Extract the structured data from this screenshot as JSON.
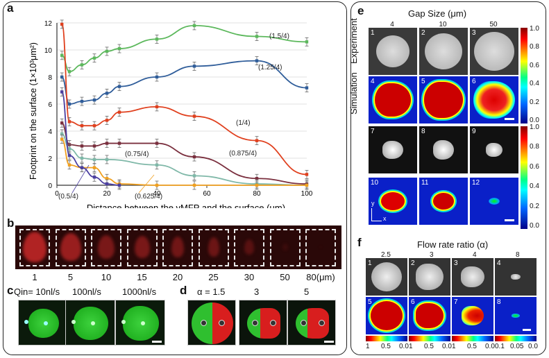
{
  "panel_labels": {
    "a": "a",
    "b": "b",
    "c": "c",
    "d": "d",
    "e": "e",
    "f": "f"
  },
  "chart_data": {
    "type": "line",
    "xlabel": "Distance between the vMFP and the surface (μm)",
    "ylabel": "Footprint on the surface (1×10³μm²)",
    "xlim": [
      0,
      100
    ],
    "ylim": [
      0,
      12
    ],
    "xticks": [
      "0",
      "20",
      "40",
      "60",
      "80",
      "100"
    ],
    "yticks": [
      "0",
      "2",
      "4",
      "6",
      "8",
      "10",
      "12"
    ],
    "series": [
      {
        "name": "(1.5/4)",
        "color": "#5cb85c",
        "x": [
          2,
          5,
          10,
          15,
          20,
          25,
          40,
          55,
          80,
          100
        ],
        "y": [
          9.6,
          8.4,
          8.9,
          9.4,
          9.9,
          10.1,
          10.8,
          11.8,
          11.0,
          10.6
        ]
      },
      {
        "name": "(1.25/4)",
        "color": "#2f5d9a",
        "x": [
          2,
          5,
          10,
          15,
          20,
          25,
          40,
          55,
          80,
          100
        ],
        "y": [
          8.0,
          6.0,
          6.2,
          6.3,
          6.8,
          7.3,
          8.0,
          8.8,
          9.2,
          7.2
        ]
      },
      {
        "name": "(1/4)",
        "color": "#e0401e",
        "x": [
          2,
          5,
          10,
          15,
          20,
          25,
          40,
          55,
          80,
          100
        ],
        "y": [
          11.9,
          4.7,
          4.4,
          4.4,
          4.8,
          5.4,
          5.8,
          5.1,
          3.3,
          0.8
        ]
      },
      {
        "name": "(0.875/4)",
        "color": "#7a2f3e",
        "x": [
          2,
          5,
          10,
          15,
          20,
          25,
          40,
          55,
          80,
          100
        ],
        "y": [
          4.6,
          3.0,
          2.9,
          2.9,
          3.1,
          3.1,
          3.1,
          2.1,
          0.5,
          0.1
        ]
      },
      {
        "name": "(0.75/4)",
        "color": "#7fb8a8",
        "x": [
          2,
          5,
          10,
          15,
          20,
          25,
          40,
          55,
          80,
          100
        ],
        "y": [
          3.8,
          2.7,
          2.0,
          1.9,
          1.9,
          null,
          1.5,
          0.7,
          0.1,
          0.0
        ]
      },
      {
        "name": "(0.625/4)",
        "color": "#f0a020",
        "x": [
          2,
          5,
          10,
          15,
          20,
          25,
          40,
          55,
          80,
          100
        ],
        "y": [
          3.4,
          1.5,
          1.3,
          1.3,
          0.5,
          0.1,
          0.0,
          0.0,
          0.0,
          0.0
        ]
      },
      {
        "name": "(0.5/4)",
        "color": "#4b3fa0",
        "x": [
          2,
          5,
          10,
          15,
          20,
          25
        ],
        "y": [
          6.9,
          2.2,
          1.3,
          0.6,
          0.1,
          0.0
        ]
      }
    ]
  },
  "panel_b": {
    "labels": [
      "1",
      "5",
      "10",
      "15",
      "20",
      "25",
      "30",
      "50",
      "80(μm)"
    ]
  },
  "panel_c": {
    "labels": [
      "Qin= 10nl/s",
      "100nl/s",
      "1000nl/s"
    ]
  },
  "panel_d": {
    "labels": [
      "α = 1.5",
      "3",
      "5"
    ]
  },
  "panel_e": {
    "title": "Gap Size (μm)",
    "cols": [
      "4",
      "10",
      "50"
    ],
    "side_simulation": "Simulation",
    "side_experiment": "Experiment",
    "tile_numbers": [
      "1",
      "2",
      "3",
      "4",
      "5",
      "6",
      "7",
      "8",
      "9",
      "10",
      "11",
      "12"
    ],
    "colorbar_ticks": [
      "1.0",
      "0.8",
      "0.6",
      "0.4",
      "0.2",
      "0.0"
    ],
    "axis_y": "y",
    "axis_x": "x"
  },
  "panel_f": {
    "title": "Flow rate ratio (α)",
    "cols": [
      "2.5",
      "3",
      "4",
      "8"
    ],
    "tile_numbers": [
      "1",
      "2",
      "3",
      "4",
      "5",
      "6",
      "7",
      "8"
    ],
    "cbar_ticks": [
      [
        "1",
        "0.5",
        "0.0"
      ],
      [
        "1",
        "0.5",
        "0.0"
      ],
      [
        "1",
        "0.5",
        "0.0"
      ],
      [
        "0.1",
        "0.05",
        "0.0"
      ]
    ]
  }
}
